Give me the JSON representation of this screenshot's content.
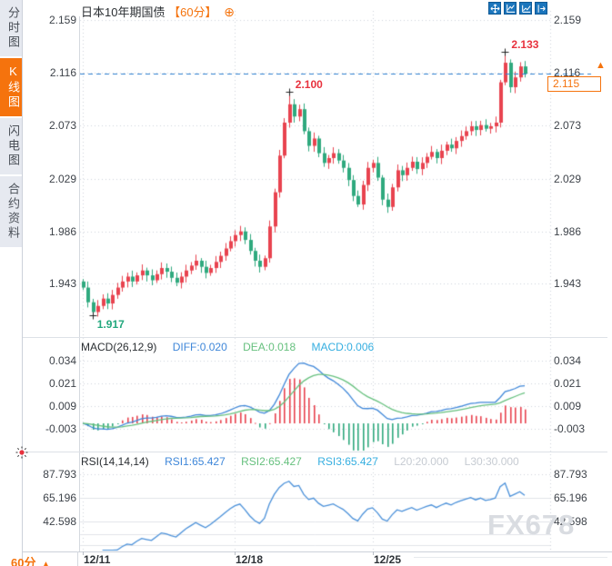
{
  "header": {
    "title": "日本10年期国债",
    "interval_tag": "【60分】",
    "expand_icon": "⊕"
  },
  "sidebar": {
    "items": [
      {
        "label": "分时图",
        "name": "sidebar-item-time-chart",
        "active": false
      },
      {
        "label": "K线图",
        "name": "sidebar-item-kline-chart",
        "active": true
      },
      {
        "label": "闪电图",
        "name": "sidebar-item-lightning-chart",
        "active": false
      },
      {
        "label": "合约资料",
        "name": "sidebar-item-contract-info",
        "active": false
      }
    ]
  },
  "main_chart": {
    "y_ticks": [
      "2.159",
      "2.116",
      "2.073",
      "2.029",
      "1.986",
      "1.943"
    ],
    "last_price": "2.115",
    "up_arrow": "▲",
    "annotations": [
      {
        "text": "2.133",
        "price": 2.133,
        "candle_index": 86,
        "position": "above"
      },
      {
        "text": "2.100",
        "price": 2.1,
        "candle_index": 42,
        "position": "above"
      },
      {
        "text": "1.917",
        "price": 1.917,
        "candle_index": 2,
        "position": "below"
      }
    ]
  },
  "macd": {
    "title": "MACD(26,12,9)",
    "diff": "DIFF:0.020",
    "dea": "DEA:0.018",
    "macd": "MACD:0.006",
    "y_ticks": [
      "0.034",
      "0.021",
      "0.009",
      "-0.003"
    ]
  },
  "rsi": {
    "title": "RSI(14,14,14)",
    "rsi1": "RSI1:65.427",
    "rsi2": "RSI2:65.427",
    "rsi3": "RSI3:65.427",
    "l20": "L20:20.000",
    "l30": "L30:30.000",
    "y_ticks": [
      "87.793",
      "65.196",
      "42.598"
    ]
  },
  "time_axis": {
    "interval_label": "60分",
    "dropdown_arrow": "▲"
  },
  "watermark": "FX678",
  "colors": {
    "up": "#e8434f",
    "down": "#2fa97e",
    "accent_orange": "#f5730d",
    "anno_red": "#e8323e",
    "anno_green": "#23a87e",
    "diff_line": "#3f87d9",
    "dea_line": "#66c07e",
    "rsi_line": "#4a90d9",
    "price_line": "#2f80d2",
    "grid": "#cfd3da",
    "marker": "#222222"
  },
  "chart_data": [
    {
      "type": "candlestick",
      "title": "日本10年期国债 60分",
      "ylim": [
        1.9,
        2.17
      ],
      "y_ticks": [
        2.159,
        2.116,
        2.073,
        2.029,
        1.986,
        1.943
      ],
      "x_ticks": [
        {
          "label": "12/11",
          "candle_index": 0
        },
        {
          "label": "12/18",
          "candle_index": 31
        },
        {
          "label": "12/25",
          "candle_index": 59
        }
      ],
      "first_open": 1.945,
      "closes": [
        1.94,
        1.928,
        1.92,
        1.925,
        1.931,
        1.927,
        1.934,
        1.94,
        1.945,
        1.949,
        1.945,
        1.95,
        1.954,
        1.95,
        1.946,
        1.951,
        1.956,
        1.953,
        1.948,
        1.944,
        1.949,
        1.954,
        1.958,
        1.962,
        1.957,
        1.952,
        1.956,
        1.961,
        1.966,
        1.972,
        1.978,
        1.983,
        1.986,
        1.979,
        1.97,
        1.962,
        1.957,
        1.964,
        1.99,
        2.018,
        2.048,
        2.075,
        2.09,
        2.08,
        2.086,
        2.068,
        2.056,
        2.062,
        2.05,
        2.042,
        2.046,
        2.05,
        2.044,
        2.038,
        2.028,
        2.015,
        2.008,
        2.024,
        2.038,
        2.042,
        2.03,
        2.012,
        2.006,
        2.022,
        2.036,
        2.032,
        2.038,
        2.043,
        2.037,
        2.042,
        2.047,
        2.051,
        2.046,
        2.052,
        2.057,
        2.054,
        2.06,
        2.064,
        2.068,
        2.072,
        2.069,
        2.073,
        2.07,
        2.072,
        2.075,
        2.108,
        2.124,
        2.104,
        2.112,
        2.121,
        2.115
      ],
      "extremes": [
        {
          "index": 2,
          "low": 1.917
        },
        {
          "index": 42,
          "high": 2.1
        },
        {
          "index": 86,
          "high": 2.133
        }
      ],
      "last_price": 2.115
    },
    {
      "type": "macd",
      "params": [
        26,
        12,
        9
      ],
      "diff": 0.02,
      "dea": 0.018,
      "macd": 0.006,
      "y_ticks": [
        0.034,
        0.021,
        0.009,
        -0.003
      ]
    },
    {
      "type": "rsi",
      "params": [
        14,
        14,
        14
      ],
      "rsi1": 65.427,
      "rsi2": 65.427,
      "rsi3": 65.427,
      "l20": 20.0,
      "l30": 30.0,
      "y_ticks": [
        87.793,
        65.196,
        42.598
      ]
    }
  ]
}
